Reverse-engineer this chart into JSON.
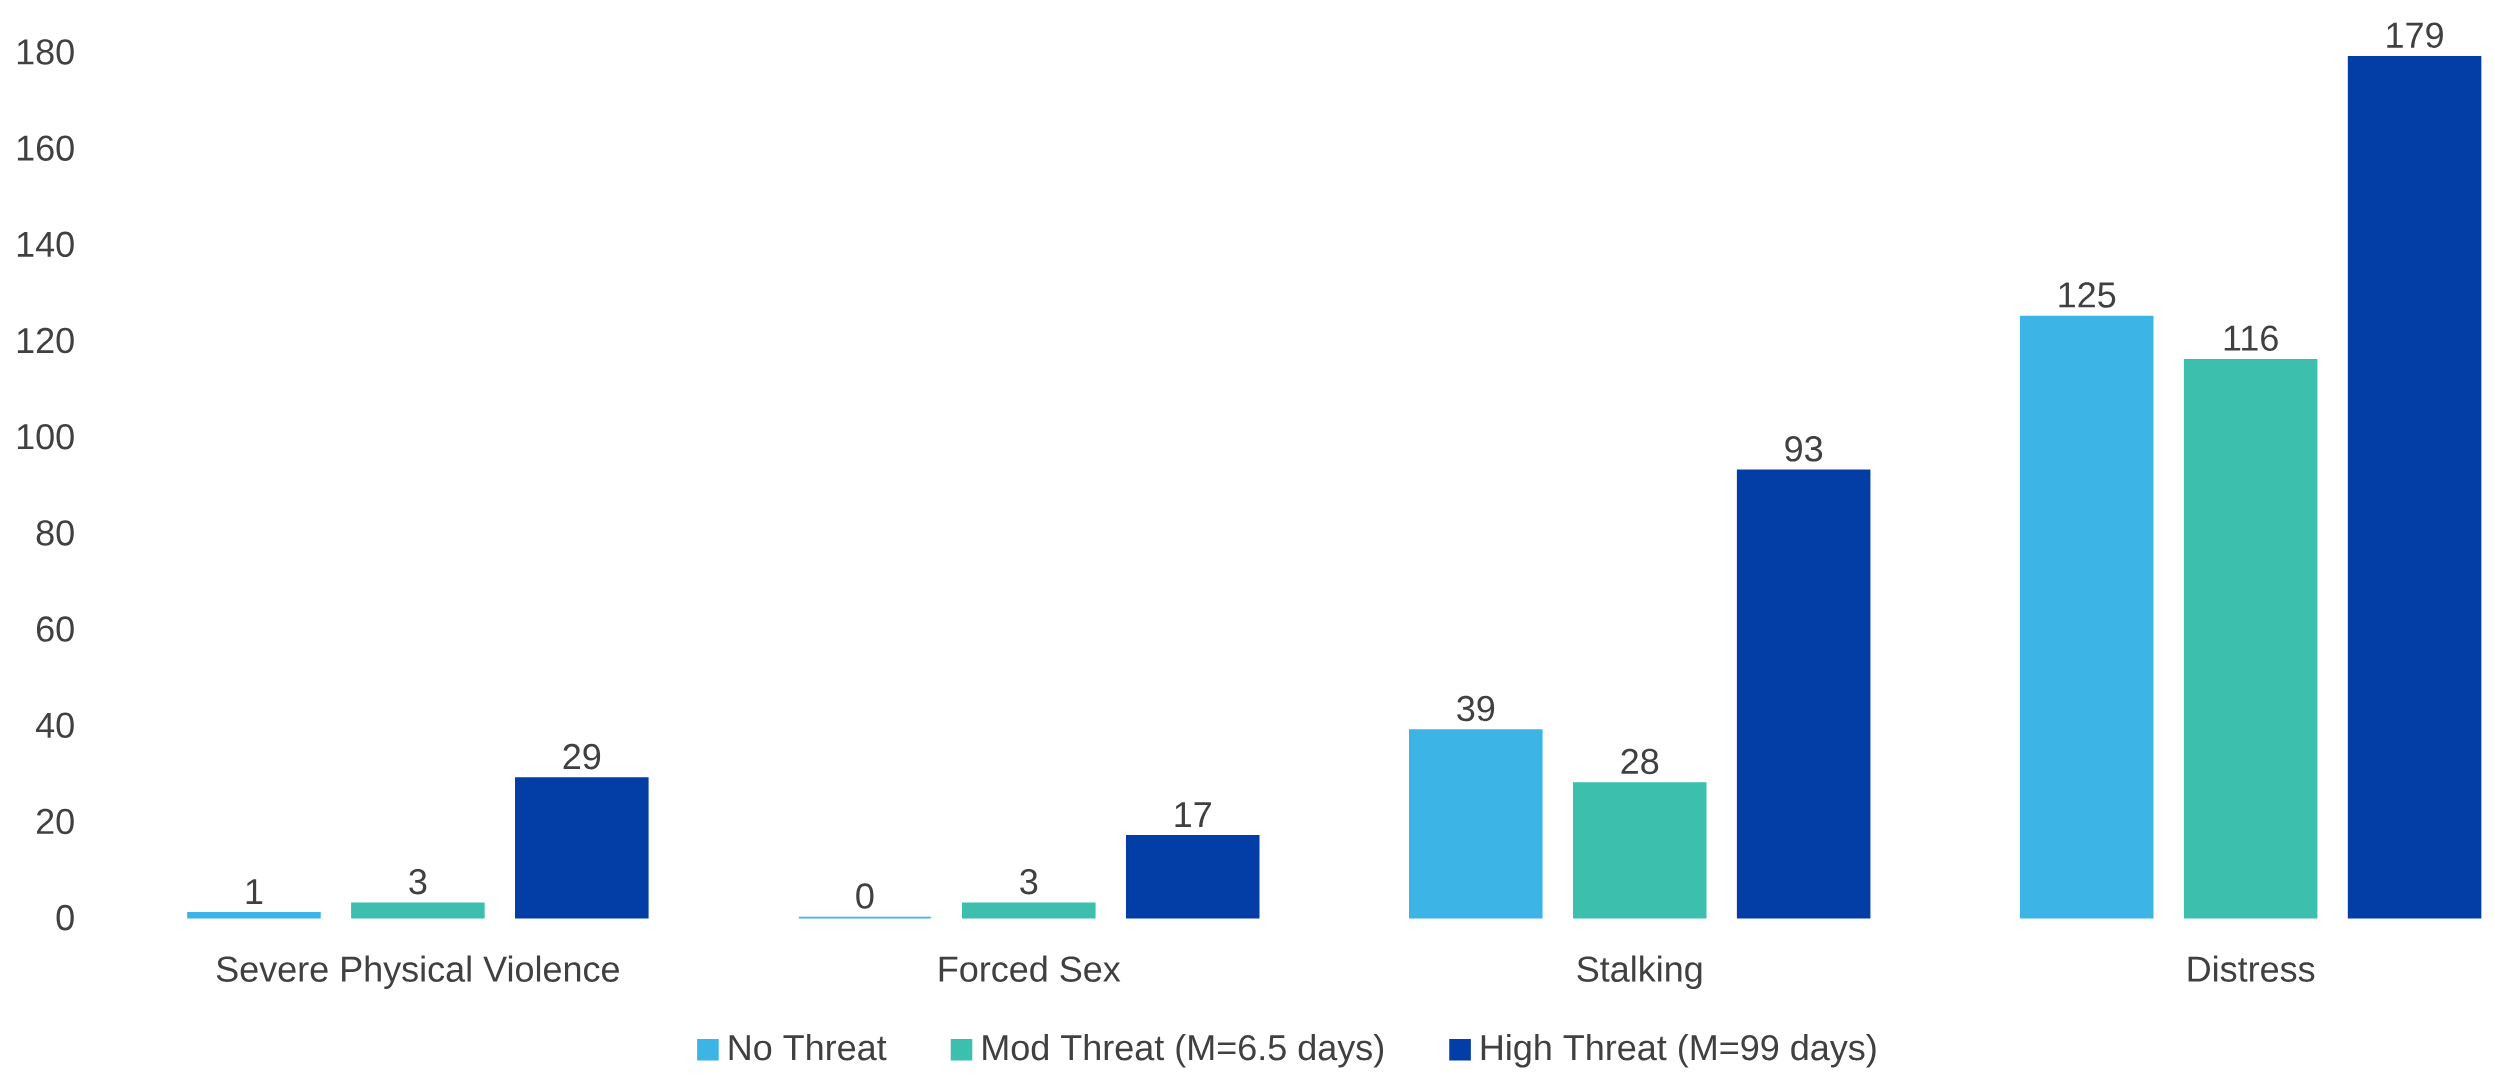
{
  "chart_data": {
    "type": "bar",
    "categories": [
      "Severe Physical Violence",
      "Forced Sex",
      "Stalking",
      "Distress"
    ],
    "series": [
      {
        "name": "No Threat",
        "color": "#3cb4e5",
        "values": [
          1,
          0,
          39,
          125
        ]
      },
      {
        "name": "Mod Threat (M=6.5 days)",
        "color": "#3dbfae",
        "values": [
          3,
          3,
          28,
          116
        ]
      },
      {
        "name": "High Threat (M=99 days)",
        "color": "#023ea5",
        "values": [
          29,
          17,
          93,
          179
        ]
      }
    ],
    "ylim": [
      0,
      180
    ],
    "yticks": [
      0,
      20,
      40,
      60,
      80,
      100,
      120,
      140,
      160,
      180
    ],
    "data_labels": true,
    "grid": false,
    "legend": "bottom"
  }
}
